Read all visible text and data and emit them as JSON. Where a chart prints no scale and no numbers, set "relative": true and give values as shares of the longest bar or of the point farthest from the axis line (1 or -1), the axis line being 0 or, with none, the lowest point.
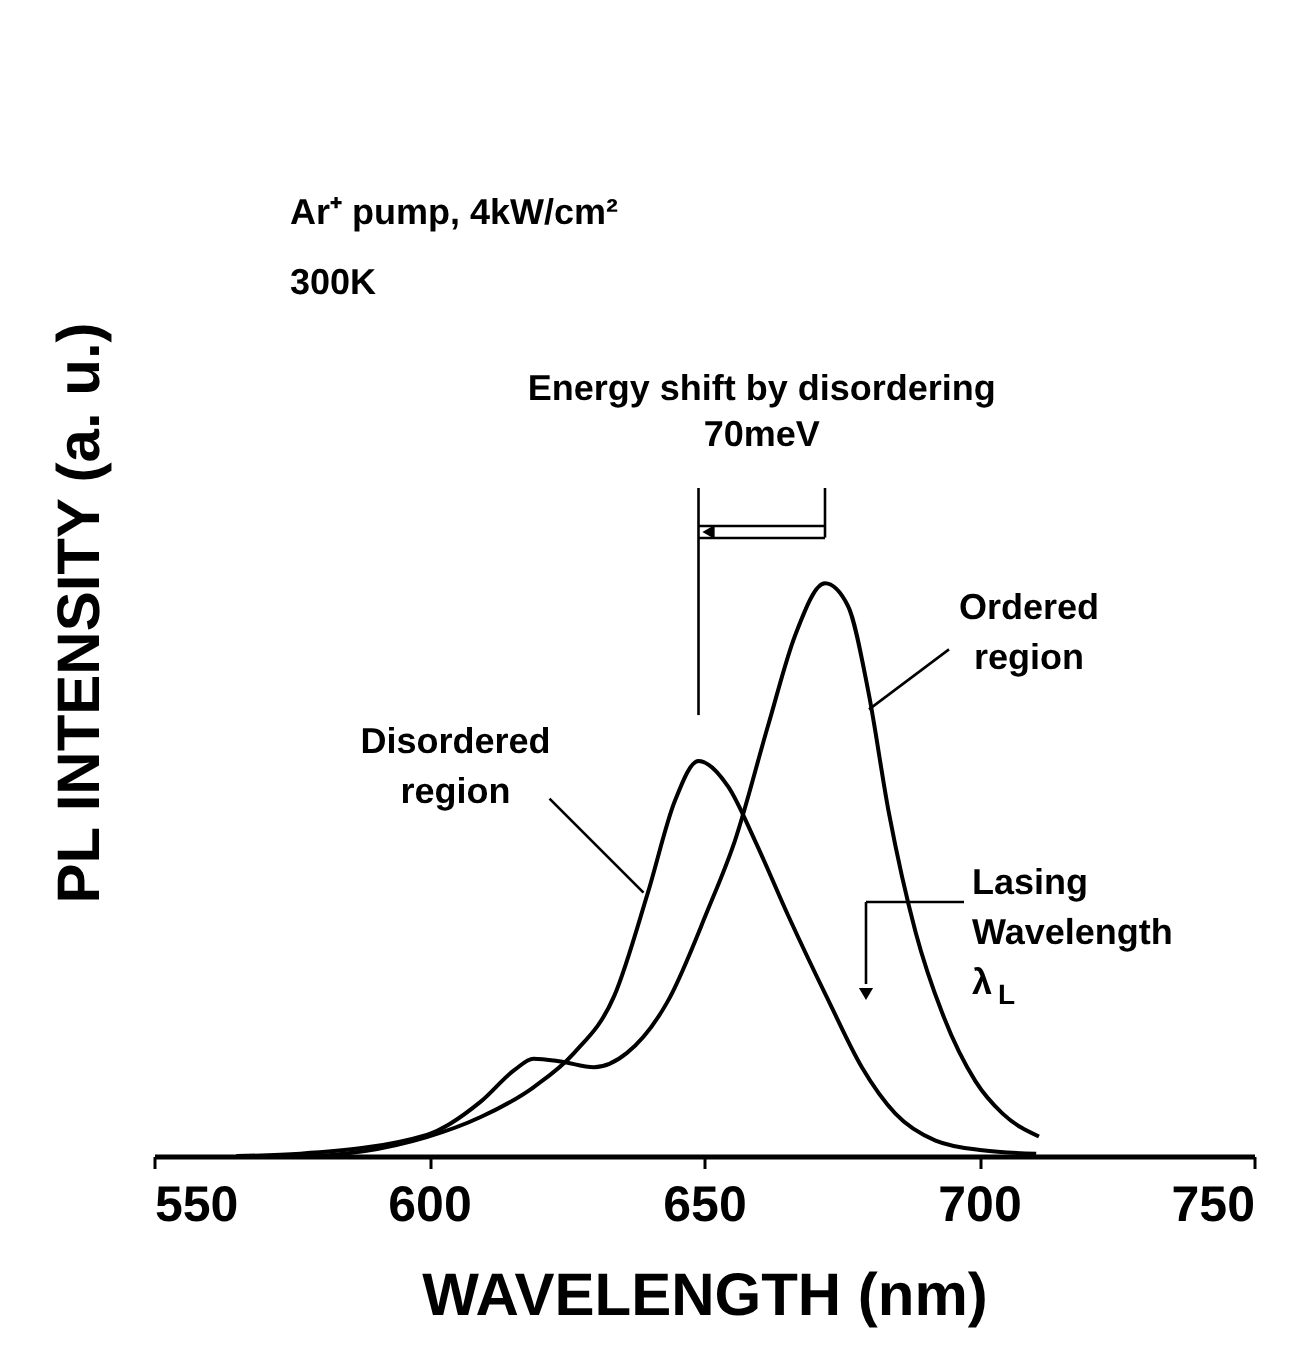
{
  "chart_data": {
    "type": "line",
    "relative": true,
    "xlabel": "WAVELENGTH   (nm)",
    "ylabel": "PL INTENSITY   (a. u.)",
    "xlim": [
      550,
      750
    ],
    "xticks": [
      550,
      600,
      650,
      700,
      750
    ],
    "series": [
      {
        "color": "#000000",
        "x": [
          565,
          576.6,
          599.6,
          609.4,
          619,
          626.4,
          633.7,
          639.8,
          644.7,
          649,
          654.4,
          659.3,
          665.3,
          672.7,
          678.7,
          684.8,
          692.1,
          700.6,
          710.4
        ],
        "values": [
          0.0,
          0.0,
          0.033,
          0.068,
          0.12,
          0.18,
          0.28,
          0.46,
          0.62,
          0.69,
          0.645,
          0.55,
          0.42,
          0.27,
          0.155,
          0.074,
          0.027,
          0.01,
          0.004
        ]
      },
      {
        "color": "#000000",
        "x": [
          565,
          576.6,
          599.6,
          609.4,
          615.5,
          619,
          624,
          630,
          636,
          643.4,
          650.7,
          655.6,
          661.6,
          666.6,
          672,
          676.2,
          679.9,
          683.6,
          688.5,
          693.3,
          699.4,
          704.3,
          710.9
        ],
        "values": [
          0.0,
          0.004,
          0.037,
          0.095,
          0.15,
          0.17,
          0.165,
          0.155,
          0.18,
          0.27,
          0.43,
          0.55,
          0.75,
          0.91,
          1.0,
          0.96,
          0.81,
          0.6,
          0.39,
          0.25,
          0.13,
          0.074,
          0.034
        ]
      }
    ],
    "annotations": [
      "Ar⁺ pump,   4kW/cm²",
      "300K",
      "Energy shift by disordering\n70meV",
      {
        "text": "Disordered\nregion",
        "x": 639,
        "y": 0.46
      },
      {
        "text": "Ordered\nregion",
        "x": 680,
        "y": 0.78
      },
      "Lasing\nWavelength\nλ$_{L}$"
    ],
    "grid": false,
    "legend": false,
    "tick_labels": "x",
    "marker": "none",
    "line_style": "solid"
  }
}
